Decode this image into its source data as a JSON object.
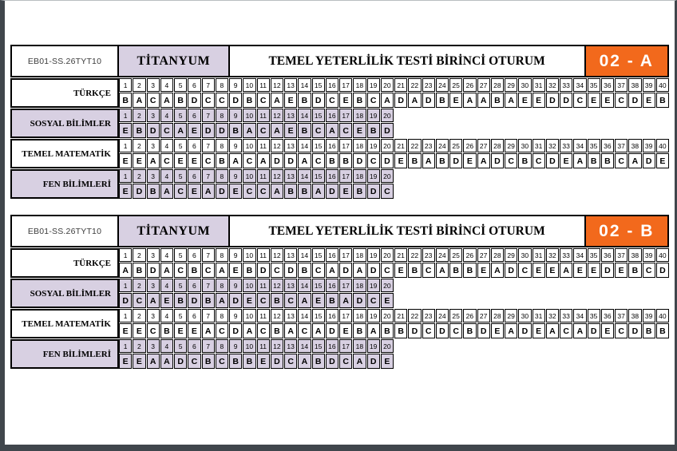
{
  "colors": {
    "lavender": "#d8d0e2",
    "orange": "#f2691c",
    "frame": "#40464c",
    "cell_border": "#000000"
  },
  "tables": [
    {
      "code": "EB01-SS.26TYT10",
      "booklet": "TİTANYUM",
      "title": "TEMEL YETERLİLİK TESTİ BİRİNCİ OTURUM",
      "form": "02 - A",
      "sections": [
        {
          "label": "TÜRKÇE",
          "shade": "white",
          "answers": [
            "B",
            "A",
            "C",
            "A",
            "B",
            "D",
            "C",
            "C",
            "D",
            "B",
            "C",
            "A",
            "E",
            "B",
            "D",
            "C",
            "E",
            "B",
            "C",
            "A",
            "D",
            "A",
            "D",
            "B",
            "E",
            "A",
            "A",
            "B",
            "A",
            "E",
            "E",
            "D",
            "D",
            "C",
            "E",
            "E",
            "C",
            "D",
            "E",
            "B"
          ]
        },
        {
          "label": "SOSYAL BİLİMLER",
          "shade": "lavender",
          "answers": [
            "E",
            "B",
            "D",
            "C",
            "A",
            "E",
            "D",
            "D",
            "B",
            "A",
            "C",
            "A",
            "E",
            "B",
            "C",
            "A",
            "C",
            "E",
            "B",
            "D"
          ]
        },
        {
          "label": "TEMEL MATEMATİK",
          "shade": "white",
          "answers": [
            "E",
            "E",
            "A",
            "C",
            "E",
            "E",
            "C",
            "B",
            "A",
            "C",
            "A",
            "D",
            "D",
            "A",
            "C",
            "B",
            "B",
            "D",
            "C",
            "D",
            "E",
            "B",
            "A",
            "B",
            "D",
            "E",
            "A",
            "D",
            "C",
            "B",
            "C",
            "D",
            "E",
            "A",
            "B",
            "B",
            "C",
            "A",
            "D",
            "E"
          ]
        },
        {
          "label": "FEN BİLİMLERİ",
          "shade": "lavender",
          "answers": [
            "E",
            "D",
            "B",
            "A",
            "C",
            "E",
            "A",
            "D",
            "E",
            "C",
            "C",
            "A",
            "B",
            "B",
            "A",
            "D",
            "E",
            "B",
            "D",
            "C"
          ]
        }
      ]
    },
    {
      "code": "EB01-SS.26TYT10",
      "booklet": "TİTANYUM",
      "title": "TEMEL YETERLİLİK TESTİ BİRİNCİ OTURUM",
      "form": "02 - B",
      "sections": [
        {
          "label": "TÜRKÇE",
          "shade": "white",
          "answers": [
            "A",
            "B",
            "D",
            "A",
            "C",
            "B",
            "C",
            "A",
            "E",
            "B",
            "D",
            "C",
            "D",
            "B",
            "C",
            "A",
            "D",
            "A",
            "D",
            "C",
            "E",
            "B",
            "C",
            "A",
            "B",
            "B",
            "E",
            "A",
            "D",
            "C",
            "E",
            "E",
            "A",
            "E",
            "E",
            "D",
            "E",
            "B",
            "C",
            "D"
          ]
        },
        {
          "label": "SOSYAL BİLİMLER",
          "shade": "lavender",
          "answers": [
            "D",
            "C",
            "A",
            "E",
            "B",
            "D",
            "B",
            "A",
            "D",
            "E",
            "C",
            "B",
            "C",
            "A",
            "E",
            "B",
            "A",
            "D",
            "C",
            "E"
          ]
        },
        {
          "label": "TEMEL MATEMATİK",
          "shade": "white",
          "answers": [
            "E",
            "E",
            "C",
            "B",
            "E",
            "E",
            "A",
            "C",
            "D",
            "A",
            "C",
            "B",
            "A",
            "C",
            "A",
            "D",
            "E",
            "B",
            "A",
            "B",
            "B",
            "D",
            "C",
            "D",
            "C",
            "B",
            "D",
            "E",
            "A",
            "D",
            "E",
            "A",
            "C",
            "A",
            "D",
            "E",
            "C",
            "D",
            "B",
            "B"
          ]
        },
        {
          "label": "FEN BİLİMLERİ",
          "shade": "lavender",
          "answers": [
            "E",
            "E",
            "A",
            "A",
            "D",
            "C",
            "B",
            "C",
            "B",
            "B",
            "E",
            "D",
            "C",
            "A",
            "B",
            "D",
            "C",
            "A",
            "D",
            "E"
          ]
        }
      ]
    }
  ]
}
